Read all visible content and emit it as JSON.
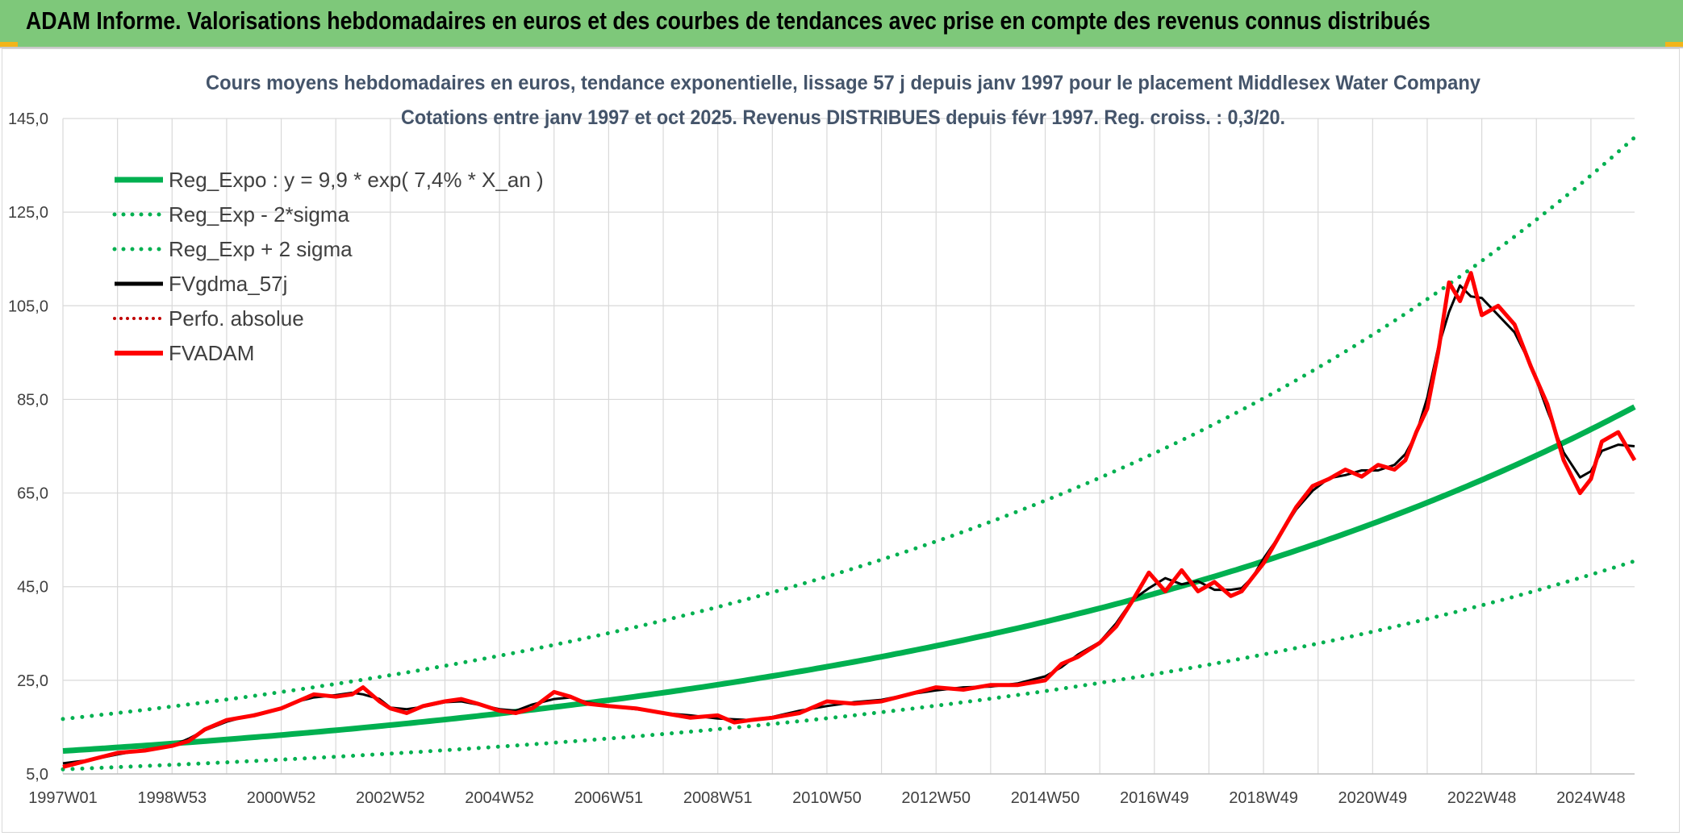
{
  "header": {
    "title": "ADAM Informe. Valorisations hebdomadaires en euros et des courbes de tendances avec prise en compte des revenus connus distribués"
  },
  "chart_data": {
    "type": "line",
    "title": "Cours moyens hebdomadaires en euros, tendance exponentielle, lissage 57 j depuis janv 1997 pour le placement Middlesex Water Company",
    "subtitle": "Cotations entre janv 1997 et oct 2025. Revenus DISTRIBUES depuis févr 1997. Reg. croiss. : 0,3/20.",
    "xlabel": "",
    "ylabel": "",
    "x_unit": "years since 1997W01",
    "xlim": [
      0,
      28.8
    ],
    "ylim": [
      5,
      145
    ],
    "y_ticks": [
      5,
      25,
      45,
      65,
      85,
      105,
      125,
      145
    ],
    "y_tick_labels": [
      "5,0",
      "25,0",
      "45,0",
      "65,0",
      "85,0",
      "105,0",
      "125,0",
      "145,0"
    ],
    "x_tick_labels": [
      "1997W01",
      "1998W53",
      "2000W52",
      "2002W52",
      "2004W52",
      "2006W51",
      "2008W51",
      "2010W50",
      "2012W50",
      "2014W50",
      "2016W49",
      "2018W49",
      "2020W49",
      "2022W48",
      "2024W48"
    ],
    "x_tick_positions": [
      0,
      2,
      4,
      6,
      8,
      10,
      12,
      14,
      16,
      18,
      20,
      22,
      24,
      26,
      28
    ],
    "grid": true,
    "legend_position": "top-left",
    "colors": {
      "reg_expo": "#00b050",
      "sigma": "#00b050",
      "gdma": "#000000",
      "perfo": "#c00000",
      "fvadam": "#ff0000",
      "grid": "#d9d9d9",
      "axis_text": "#404040",
      "title_text": "#44546a"
    },
    "regression": {
      "a": 9.9,
      "rate": 0.074
    },
    "sigma_band": {
      "lower_factor": 0.605,
      "upper_factor": 1.69
    },
    "series": [
      {
        "name": "Reg_Expo : y = 9,9 * exp( 7,4% *  X_an )",
        "style": "solid-thick",
        "color_key": "reg_expo"
      },
      {
        "name": "Reg_Exp - 2*sigma",
        "style": "dotted",
        "color_key": "sigma"
      },
      {
        "name": "Reg_Exp + 2 sigma",
        "style": "dotted",
        "color_key": "sigma"
      },
      {
        "name": "FVgdma_57j",
        "style": "solid-thin",
        "color_key": "gdma"
      },
      {
        "name": "Perfo. absolue",
        "style": "dotted-red",
        "color_key": "perfo"
      },
      {
        "name": "FVADAM",
        "style": "solid-red",
        "color_key": "fvadam",
        "x": [
          0,
          0.5,
          1.0,
          1.5,
          2.0,
          2.3,
          2.6,
          3.0,
          3.5,
          4.0,
          4.3,
          4.6,
          5.0,
          5.3,
          5.5,
          5.8,
          6.0,
          6.3,
          6.6,
          7.0,
          7.3,
          7.6,
          8.0,
          8.3,
          8.6,
          9.0,
          9.3,
          9.6,
          10.0,
          10.5,
          11.0,
          11.5,
          12.0,
          12.3,
          12.6,
          13.0,
          13.5,
          14.0,
          14.5,
          15.0,
          15.5,
          16.0,
          16.5,
          17.0,
          17.5,
          18.0,
          18.3,
          18.6,
          19.0,
          19.3,
          19.6,
          19.9,
          20.2,
          20.5,
          20.8,
          21.1,
          21.4,
          21.6,
          21.8,
          22.0,
          22.3,
          22.6,
          22.9,
          23.2,
          23.5,
          23.8,
          24.1,
          24.4,
          24.6,
          24.8,
          25.0,
          25.2,
          25.4,
          25.6,
          25.8,
          26.0,
          26.3,
          26.6,
          26.9,
          27.2,
          27.5,
          27.8,
          28.0,
          28.2,
          28.5,
          28.8
        ],
        "values": [
          6.5,
          8.0,
          9.5,
          10.0,
          11.0,
          12.0,
          14.5,
          16.5,
          17.5,
          19.0,
          20.5,
          22.0,
          21.5,
          22.0,
          23.5,
          20.5,
          19.0,
          18.0,
          19.5,
          20.5,
          21.0,
          20.0,
          18.5,
          18.0,
          19.0,
          22.5,
          21.5,
          20.0,
          19.5,
          19.0,
          18.0,
          17.0,
          17.5,
          16.0,
          16.5,
          17.0,
          18.0,
          20.5,
          20.0,
          20.5,
          22.0,
          23.5,
          23.0,
          24.0,
          24.0,
          25.0,
          28.5,
          30.0,
          33.0,
          36.5,
          42.0,
          48.0,
          44.0,
          48.5,
          44.0,
          46.0,
          43.0,
          44.0,
          47.0,
          50.0,
          56.0,
          62.0,
          66.5,
          68.0,
          70.0,
          68.5,
          71.0,
          70.0,
          72.0,
          78.0,
          83.0,
          95.0,
          110.0,
          106.0,
          112.0,
          103.0,
          105.0,
          101.0,
          92.0,
          84.0,
          72.0,
          65.0,
          68.0,
          76.0,
          78.0,
          72.0
        ]
      }
    ]
  }
}
